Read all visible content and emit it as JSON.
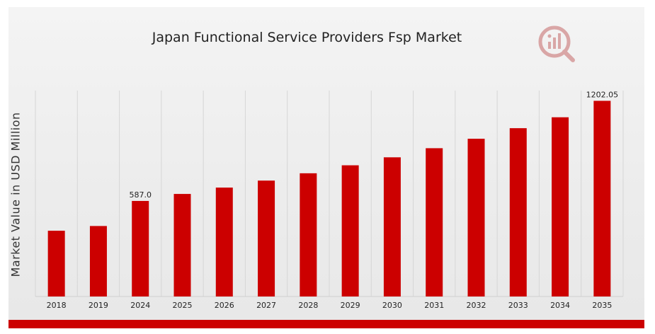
{
  "chart_data": {
    "type": "bar",
    "title": "Japan Functional Service Providers Fsp Market",
    "xlabel": "",
    "ylabel": "Market Value in USD Million",
    "categories": [
      "2018",
      "2019",
      "2024",
      "2025",
      "2026",
      "2027",
      "2028",
      "2029",
      "2030",
      "2031",
      "2032",
      "2033",
      "2034",
      "2035"
    ],
    "values": [
      404,
      433,
      587.0,
      630,
      669,
      712,
      757,
      806,
      855,
      911,
      969,
      1034,
      1101,
      1202.05
    ],
    "data_labels": [
      {
        "category": "2024",
        "text": "587.0"
      },
      {
        "category": "2035",
        "text": "1202.05"
      }
    ],
    "ylim": [
      0,
      1265
    ],
    "grid": "vertical",
    "bar_color": "#cc0000"
  }
}
